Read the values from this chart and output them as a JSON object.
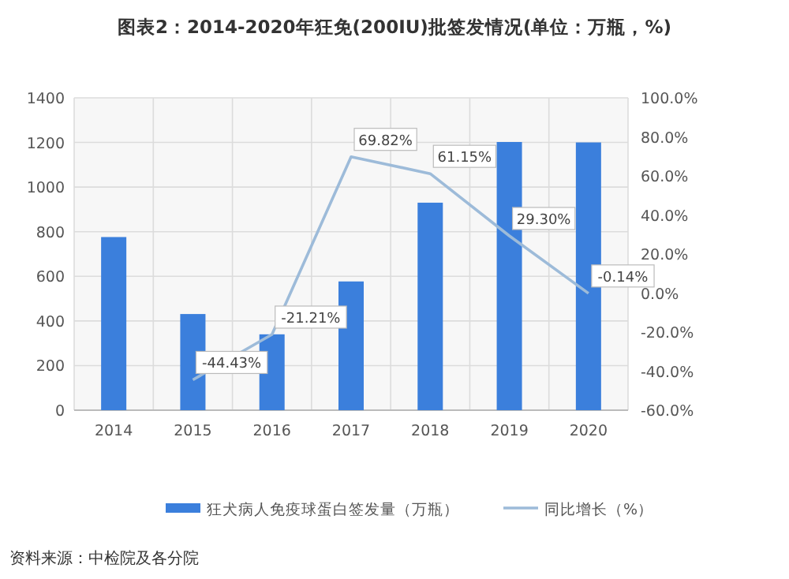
{
  "chart_data": {
    "type": "bar",
    "title": "图表2：2014-2020年狂免(200IU)批签发情况(单位：万瓶，%)",
    "categories": [
      "2014",
      "2015",
      "2016",
      "2017",
      "2018",
      "2019",
      "2020"
    ],
    "series": [
      {
        "name": "狂犬病人免疫球蛋白签发量（万瓶）",
        "color": "#3b7fdc",
        "values": [
          776,
          431,
          340,
          577,
          930,
          1202,
          1200
        ]
      },
      {
        "name": "同比增长（%）",
        "type": "line",
        "axis": "y2",
        "color": "#9dbbd9",
        "values": [
          null,
          -44.43,
          -21.21,
          69.82,
          61.15,
          29.3,
          -0.14
        ],
        "value_labels": [
          null,
          "-44.43%",
          "-21.21%",
          "69.82%",
          "61.15%",
          "29.30%",
          "-0.14%"
        ]
      }
    ],
    "ylim": [
      0,
      1400
    ],
    "yticks": [
      0,
      200,
      400,
      600,
      800,
      1000,
      1200,
      1400
    ],
    "y2lim": [
      -60,
      100
    ],
    "y2ticks": [
      {
        "value": -60,
        "label": "-60.0%"
      },
      {
        "value": -40,
        "label": "-40.0%"
      },
      {
        "value": -20,
        "label": "-20.0%"
      },
      {
        "value": 0,
        "label": "0.0%"
      },
      {
        "value": 20,
        "label": "20.0%"
      },
      {
        "value": 40,
        "label": "40.0%"
      },
      {
        "value": 60,
        "label": "60.0%"
      },
      {
        "value": 80,
        "label": "80.0%"
      },
      {
        "value": 100,
        "label": "100.0%"
      }
    ],
    "grid": true,
    "legend": "bottom",
    "annotations": [
      "资料来源：中检院及各分院"
    ]
  }
}
